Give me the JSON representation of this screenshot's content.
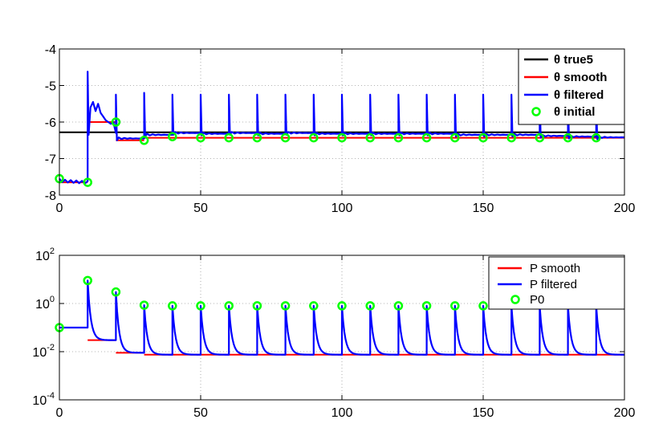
{
  "chart_data": [
    {
      "type": "line",
      "xlim": [
        0,
        200
      ],
      "ylim": [
        -8,
        -4
      ],
      "xticks": [
        "0",
        "50",
        "100",
        "150",
        "200"
      ],
      "yticks": [
        "-8",
        "-7",
        "-6",
        "-5",
        "-4"
      ],
      "grid": true,
      "legend_position": "top-right",
      "series": [
        {
          "name": "θ true5",
          "color": "#000000",
          "kind": "line",
          "x": [
            0,
            200
          ],
          "y": [
            -6.28,
            -6.28
          ]
        },
        {
          "name": "θ smooth",
          "color": "#ff0000",
          "kind": "step",
          "segments": [
            {
              "x": [
                0,
                10
              ],
              "y": -7.65
            },
            {
              "x": [
                10,
                20
              ],
              "y": -6.0
            },
            {
              "x": [
                20,
                30
              ],
              "y": -6.5
            },
            {
              "x": [
                30,
                200
              ],
              "y": -6.43
            }
          ]
        },
        {
          "name": "θ filtered",
          "color": "#0000ff",
          "kind": "line",
          "spike_x": [
            10,
            20,
            30,
            40,
            50,
            60,
            70,
            80,
            90,
            100,
            110,
            120,
            130,
            140,
            150,
            160,
            170,
            180,
            190
          ],
          "spike_y": [
            -4.62,
            -5.25,
            -5.2,
            -5.25,
            -5.25,
            -5.25,
            -5.25,
            -5.25,
            -5.25,
            -5.25,
            -5.25,
            -5.25,
            -5.25,
            -5.25,
            -5.25,
            -5.25,
            -5.25,
            -5.25,
            -5.25
          ],
          "settle_y": [
            -6.3,
            -6.45,
            -6.35,
            -6.3,
            -6.32,
            -6.3,
            -6.32,
            -6.3,
            -6.32,
            -6.32,
            -6.32,
            -6.32,
            -6.32,
            -6.35,
            -6.35,
            -6.35,
            -6.38,
            -6.4,
            -6.42
          ]
        },
        {
          "name": "θ initial",
          "color": "#00ff00",
          "kind": "marker",
          "x": [
            0,
            10,
            20,
            30,
            40,
            50,
            60,
            70,
            80,
            90,
            100,
            110,
            120,
            130,
            140,
            150,
            160,
            170,
            180,
            190
          ],
          "y": [
            -7.55,
            -7.65,
            -6.0,
            -6.5,
            -6.4,
            -6.43,
            -6.43,
            -6.43,
            -6.43,
            -6.43,
            -6.43,
            -6.43,
            -6.43,
            -6.43,
            -6.43,
            -6.43,
            -6.43,
            -6.43,
            -6.43,
            -6.43
          ]
        }
      ]
    },
    {
      "type": "line",
      "yscale": "log",
      "xlim": [
        0,
        200
      ],
      "ylim": [
        0.0001,
        100
      ],
      "xticks": [
        "0",
        "50",
        "100",
        "150",
        "200"
      ],
      "yticks": [
        {
          "base": "10",
          "exp": "-4",
          "value": 0.0001
        },
        {
          "base": "10",
          "exp": "-2",
          "value": 0.01
        },
        {
          "base": "10",
          "exp": "0",
          "value": 1
        },
        {
          "base": "10",
          "exp": "2",
          "value": 100
        }
      ],
      "grid": true,
      "legend_position": "top-right",
      "series": [
        {
          "name": "P smooth",
          "color": "#ff0000",
          "kind": "step",
          "segments": [
            {
              "x": [
                0,
                10
              ],
              "y": 0.1
            },
            {
              "x": [
                10,
                20
              ],
              "y": 0.03
            },
            {
              "x": [
                20,
                30
              ],
              "y": 0.009
            },
            {
              "x": [
                30,
                200
              ],
              "y": 0.0075
            }
          ]
        },
        {
          "name": "P filtered",
          "color": "#0000ff",
          "kind": "line",
          "start_x": [
            0,
            10,
            20,
            30,
            40,
            50,
            60,
            70,
            80,
            90,
            100,
            110,
            120,
            130,
            140,
            150,
            160,
            170,
            180,
            190
          ],
          "start_y": [
            0.1,
            9.0,
            3.0,
            0.85,
            0.8,
            0.8,
            0.8,
            0.8,
            0.8,
            0.8,
            0.8,
            0.8,
            0.8,
            0.8,
            0.8,
            0.8,
            0.8,
            0.8,
            0.8,
            0.8
          ],
          "end_y": [
            0.1,
            0.03,
            0.009,
            0.0075,
            0.0075,
            0.0075,
            0.0075,
            0.0075,
            0.0075,
            0.0075,
            0.0075,
            0.0075,
            0.0075,
            0.0075,
            0.0075,
            0.0075,
            0.0075,
            0.0075,
            0.0075,
            0.0075
          ]
        },
        {
          "name": "P0",
          "color": "#00ff00",
          "kind": "marker",
          "x": [
            0,
            10,
            20,
            30,
            40,
            50,
            60,
            70,
            80,
            90,
            100,
            110,
            120,
            130,
            140,
            150
          ],
          "y": [
            0.1,
            9.0,
            3.0,
            0.85,
            0.8,
            0.8,
            0.8,
            0.8,
            0.8,
            0.8,
            0.8,
            0.8,
            0.8,
            0.8,
            0.8,
            0.8
          ]
        }
      ]
    }
  ]
}
